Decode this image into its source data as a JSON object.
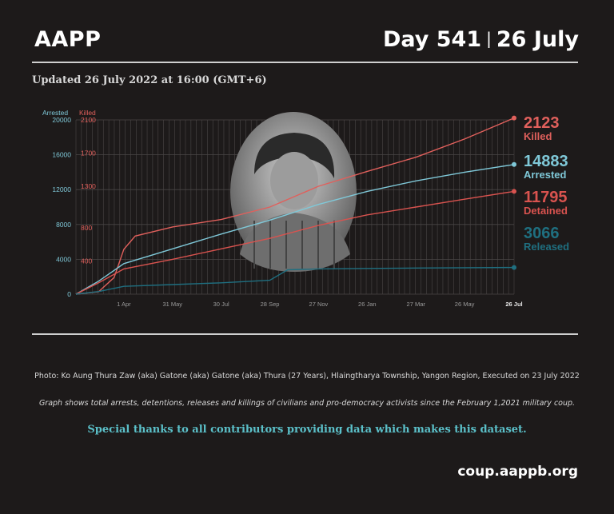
{
  "header": {
    "org": "AAPP",
    "day": "Day 541",
    "date": "26 July"
  },
  "updated": "Updated 26 July 2022 at 16:00 (GMT+6)",
  "photo_caption": "Photo:  Ko Aung Thura Zaw (aka) Gatone (aka) Gatone (aka) Thura (27 Years), Hlaingtharya Township, Yangon Region, Executed on 23 July 2022",
  "graph_caption": "Graph shows total arrests, detentions, releases and killings of civilians and pro-democracy activists since the February 1,2021 military coup.",
  "thanks": "Special thanks to all contributors providing data which makes this dataset.",
  "url": "coup.aappb.org",
  "colors": {
    "killed": "#e0605c",
    "arrested": "#7fc8d8",
    "detained": "#d9534f",
    "released": "#1f6f80",
    "grid": "#4a4646"
  },
  "chart_data": {
    "type": "line",
    "left_axis": {
      "label": "Arrested",
      "ticks": [
        "20000",
        "16000",
        "12000",
        "8000",
        "4000",
        "0"
      ],
      "range": [
        0,
        20000
      ]
    },
    "right_axis": {
      "label": "Killed",
      "ticks": [
        "2100",
        "1700",
        "1300",
        "800",
        "400"
      ],
      "range": [
        0,
        2100
      ]
    },
    "x_ticks": [
      "1 Apr",
      "31 May",
      "30 Jul",
      "28 Sep",
      "27 Nov",
      "26 Jan",
      "27 Mar",
      "26 May",
      "26 Jul"
    ],
    "x_range": [
      "1 Feb 2021",
      "26 Jul 2022"
    ],
    "series": [
      {
        "name": "Killed",
        "axis": "right",
        "color": "#e0605c",
        "final_value": "2123",
        "x": [
          "1 Feb 2021",
          "1 Mar 2021",
          "20 Mar 2021",
          "1 Apr 2021",
          "15 Apr 2021",
          "31 May 2021",
          "30 Jul 2021",
          "28 Sep 2021",
          "27 Nov 2021",
          "26 Jan 2022",
          "27 Mar 2022",
          "26 May 2022",
          "26 Jul 2022"
        ],
        "y": [
          0,
          30,
          200,
          540,
          700,
          810,
          900,
          1050,
          1300,
          1480,
          1650,
          1870,
          2123
        ]
      },
      {
        "name": "Arrested",
        "axis": "left",
        "color": "#7fc8d8",
        "final_value": "14883",
        "x": [
          "1 Feb 2021",
          "1 Mar 2021",
          "1 Apr 2021",
          "31 May 2021",
          "30 Jul 2021",
          "28 Sep 2021",
          "27 Nov 2021",
          "26 Jan 2022",
          "27 Mar 2022",
          "26 May 2022",
          "26 Jul 2022"
        ],
        "y": [
          0,
          1500,
          3500,
          5200,
          6900,
          8500,
          10300,
          11800,
          13000,
          14000,
          14883
        ]
      },
      {
        "name": "Detained",
        "axis": "left",
        "color": "#d9534f",
        "final_value": "11795",
        "x": [
          "1 Feb 2021",
          "1 Mar 2021",
          "1 Apr 2021",
          "31 May 2021",
          "30 Jul 2021",
          "28 Sep 2021",
          "27 Nov 2021",
          "26 Jan 2022",
          "27 Mar 2022",
          "26 May 2022",
          "26 Jul 2022"
        ],
        "y": [
          0,
          1300,
          2900,
          4000,
          5200,
          6400,
          7900,
          9100,
          10000,
          10900,
          11795
        ]
      },
      {
        "name": "Released",
        "axis": "left",
        "color": "#1f6f80",
        "final_value": "3066",
        "x": [
          "1 Feb 2021",
          "1 Mar 2021",
          "1 Apr 2021",
          "31 May 2021",
          "30 Jul 2021",
          "28 Sep 2021",
          "20 Oct 2021",
          "27 Nov 2021",
          "26 Jan 2022",
          "27 Mar 2022",
          "26 May 2022",
          "26 Jul 2022"
        ],
        "y": [
          0,
          300,
          900,
          1100,
          1300,
          1600,
          2800,
          2900,
          2950,
          3000,
          3040,
          3066
        ]
      }
    ],
    "grid": true,
    "legend": "right-end labels"
  }
}
